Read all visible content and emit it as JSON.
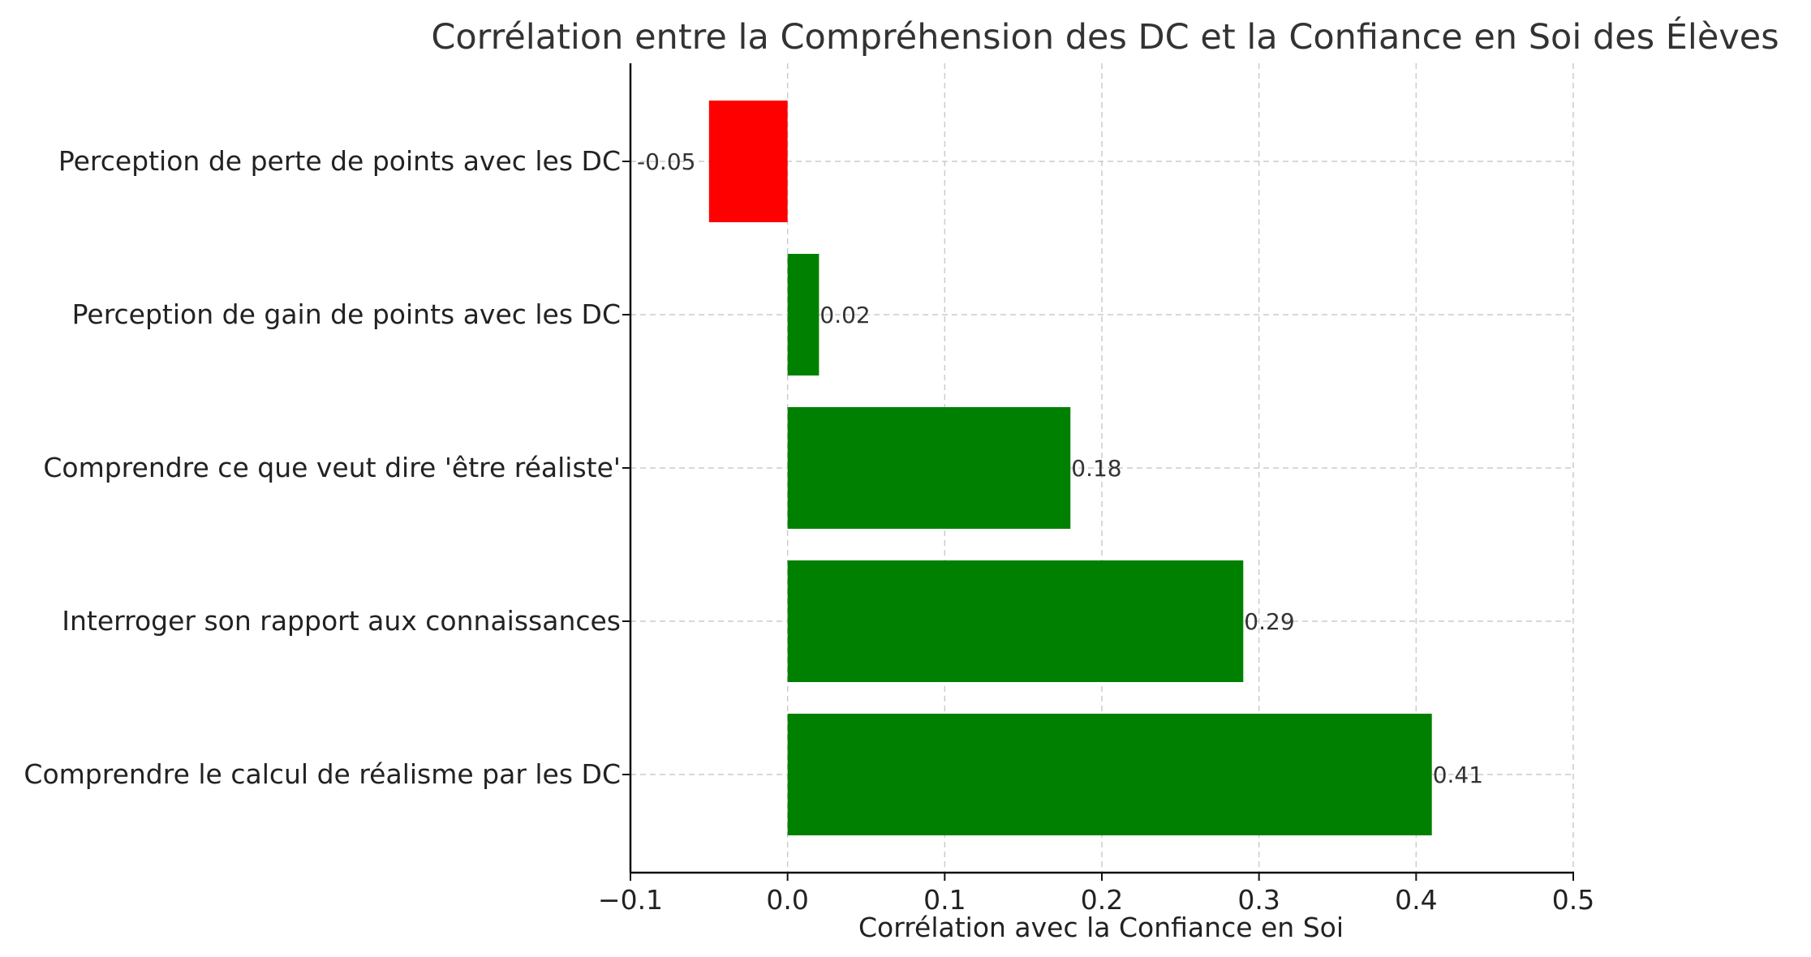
{
  "chart_data": {
    "type": "bar",
    "orientation": "horizontal",
    "title": "Corrélation entre la Compréhension des DC et la Confiance en Soi des Élèves",
    "xlabel": "Corrélation avec la Confiance en Soi",
    "ylabel": "",
    "categories": [
      "Perception de perte de points avec les DC",
      "Perception de gain de points avec les DC",
      "Comprendre ce que veut dire 'être réaliste'",
      "Interroger son rapport aux connaissances",
      "Comprendre le calcul de réalisme par les DC"
    ],
    "values": [
      -0.05,
      0.02,
      0.18,
      0.29,
      0.41
    ],
    "value_labels": [
      "-0.05",
      "0.02",
      "0.18",
      "0.29",
      "0.41"
    ],
    "colors": [
      "#ff0000",
      "#008000",
      "#008000",
      "#008000",
      "#008000"
    ],
    "xlim": [
      -0.1,
      0.5
    ],
    "xticks": [
      -0.1,
      0.0,
      0.1,
      0.2,
      0.3,
      0.4,
      0.5
    ],
    "xtick_labels": [
      "−0.1",
      "0.0",
      "0.1",
      "0.2",
      "0.3",
      "0.4",
      "0.5"
    ],
    "grid": true
  }
}
